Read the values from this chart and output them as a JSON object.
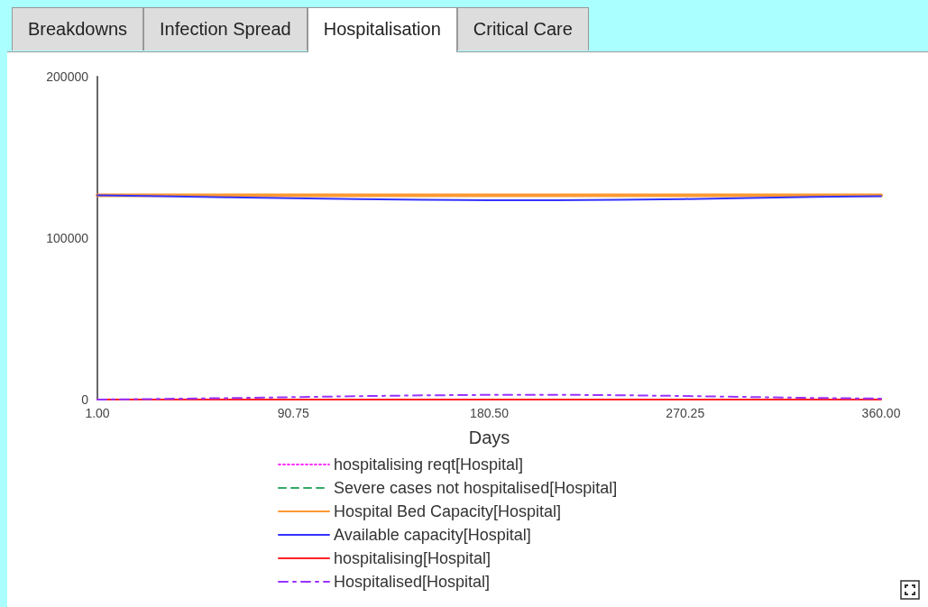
{
  "chart_data": {
    "type": "line",
    "xlabel": "Days",
    "annotations": [
      "Breakdowns",
      "Infection Spread",
      "Hospitalisation",
      "Critical Care"
    ],
    "x": [
      1,
      30,
      60,
      90,
      120,
      150,
      180,
      210,
      240,
      270,
      300,
      330,
      360
    ],
    "xlim": [
      1,
      360
    ],
    "xticks": [
      {
        "value": 1,
        "label": "1.00"
      },
      {
        "value": 90.75,
        "label": "90.75"
      },
      {
        "value": 180.5,
        "label": "180.50"
      },
      {
        "value": 270.25,
        "label": "270.25"
      },
      {
        "value": 360,
        "label": "360.00"
      }
    ],
    "ylim": [
      0,
      200000
    ],
    "yticks": [
      0,
      100000,
      200000
    ],
    "grid": false,
    "legend": "bottom",
    "marker": "none",
    "series": [
      {
        "name": "hospitalising reqt[Hospital]",
        "color": "#ff33ff",
        "line_style": "dotted",
        "values": [
          null,
          null,
          null,
          null,
          null,
          null,
          null,
          null,
          null,
          null,
          null,
          null,
          null
        ]
      },
      {
        "name": "Severe cases not hospitalised[Hospital]",
        "color": "#33aa66",
        "line_style": "dashed",
        "values": [
          null,
          null,
          null,
          null,
          null,
          null,
          null,
          null,
          null,
          null,
          null,
          null,
          null
        ]
      },
      {
        "name": "Hospital Bed Capacity[Hospital]",
        "color": "#ff9933",
        "line_style": "solid",
        "values": [
          126500,
          126500,
          126500,
          126500,
          126500,
          126500,
          126500,
          126500,
          126500,
          126500,
          126500,
          126500,
          126500
        ]
      },
      {
        "name": "Available capacity[Hospital]",
        "color": "#3333ff",
        "line_style": "solid",
        "values": [
          126500,
          126000,
          125300,
          124700,
          124100,
          123700,
          123500,
          123500,
          123700,
          124200,
          124900,
          125600,
          126000
        ]
      },
      {
        "name": "hospitalising[Hospital]",
        "color": "#ff2222",
        "line_style": "solid",
        "values": [
          0,
          0,
          0,
          0,
          0,
          0,
          0,
          0,
          0,
          0,
          0,
          0,
          0
        ]
      },
      {
        "name": "Hospitalised[Hospital]",
        "color": "#9933ff",
        "line_style": "dashdot",
        "values": [
          0,
          400,
          900,
          1500,
          2100,
          2600,
          2900,
          3000,
          2700,
          2200,
          1600,
          1000,
          600
        ]
      }
    ]
  }
}
